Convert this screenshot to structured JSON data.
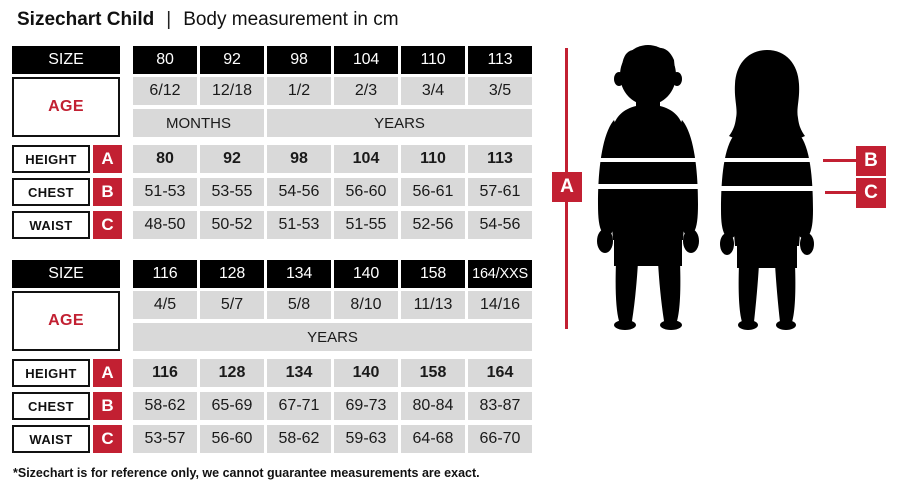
{
  "title": {
    "main": "Sizechart Child",
    "separator": "|",
    "subtitle": "Body measurement in cm"
  },
  "colors": {
    "accent_red": "#c22032",
    "header_black": "#000000",
    "cell_gray": "#d9d9d9"
  },
  "tables": [
    {
      "size_label": "SIZE",
      "age_label": "AGE",
      "sizes": [
        "80",
        "92",
        "98",
        "104",
        "110",
        "113"
      ],
      "ages": [
        "6/12",
        "12/18",
        "1/2",
        "2/3",
        "3/4",
        "3/5"
      ],
      "period_groups": [
        {
          "label": "MONTHS",
          "span": 2
        },
        {
          "label": "YEARS",
          "span": 4
        }
      ],
      "rows": [
        {
          "label": "HEIGHT",
          "letter": "A",
          "bold": true,
          "values": [
            "80",
            "92",
            "98",
            "104",
            "110",
            "113"
          ]
        },
        {
          "label": "CHEST",
          "letter": "B",
          "bold": false,
          "values": [
            "51-53",
            "53-55",
            "54-56",
            "56-60",
            "56-61",
            "57-61"
          ]
        },
        {
          "label": "WAIST",
          "letter": "C",
          "bold": false,
          "values": [
            "48-50",
            "50-52",
            "51-53",
            "51-55",
            "52-56",
            "54-56"
          ]
        }
      ]
    },
    {
      "size_label": "SIZE",
      "age_label": "AGE",
      "sizes": [
        "116",
        "128",
        "134",
        "140",
        "158",
        "164/XXS"
      ],
      "ages": [
        "4/5",
        "5/7",
        "5/8",
        "8/10",
        "11/13",
        "14/16"
      ],
      "period_groups": [
        {
          "label": "YEARS",
          "span": 6
        }
      ],
      "rows": [
        {
          "label": "HEIGHT",
          "letter": "A",
          "bold": true,
          "values": [
            "116",
            "128",
            "134",
            "140",
            "158",
            "164"
          ]
        },
        {
          "label": "CHEST",
          "letter": "B",
          "bold": false,
          "values": [
            "58-62",
            "65-69",
            "67-71",
            "69-73",
            "80-84",
            "83-87"
          ]
        },
        {
          "label": "WAIST",
          "letter": "C",
          "bold": false,
          "values": [
            "53-57",
            "56-60",
            "58-62",
            "59-63",
            "64-68",
            "66-70"
          ]
        }
      ]
    }
  ],
  "figure": {
    "labels": {
      "a": "A",
      "b": "B",
      "c": "C"
    }
  },
  "footnote": "*Sizechart is for reference only, we cannot guarantee measurements are exact."
}
